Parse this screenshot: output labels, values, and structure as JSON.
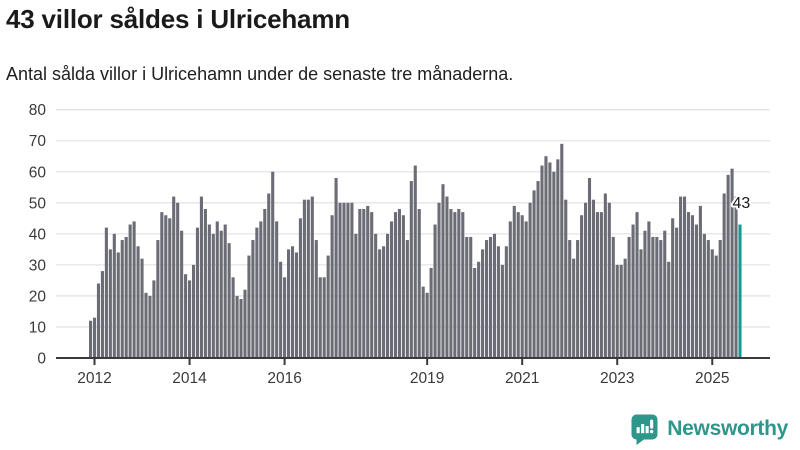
{
  "header": {
    "title": "43 villor såldes i Ulricehamn",
    "subtitle": "Antal sålda villor i Ulricehamn under de senaste tre månaderna."
  },
  "chart_data": {
    "type": "bar",
    "title": "43 villor såldes i Ulricehamn",
    "subtitle": "Antal sålda villor i Ulricehamn under de senaste tre månaderna.",
    "x_start": "2011-12",
    "x_end": "2025-08",
    "x_interval": "month",
    "values": [
      12,
      13,
      24,
      28,
      42,
      35,
      40,
      34,
      38,
      39,
      43,
      44,
      36,
      32,
      21,
      20,
      25,
      38,
      47,
      46,
      45,
      52,
      50,
      41,
      27,
      25,
      30,
      42,
      52,
      48,
      43,
      40,
      44,
      41,
      43,
      37,
      26,
      20,
      19,
      22,
      33,
      38,
      42,
      44,
      48,
      53,
      60,
      44,
      31,
      26,
      35,
      36,
      34,
      45,
      51,
      51,
      52,
      38,
      26,
      26,
      33,
      46,
      58,
      50,
      50,
      50,
      50,
      40,
      48,
      48,
      49,
      47,
      40,
      35,
      36,
      40,
      44,
      47,
      48,
      46,
      38,
      57,
      62,
      48,
      23,
      21,
      29,
      43,
      50,
      56,
      52,
      48,
      47,
      48,
      47,
      39,
      39,
      29,
      31,
      35,
      38,
      39,
      40,
      36,
      30,
      36,
      44,
      49,
      47,
      46,
      44,
      50,
      54,
      57,
      62,
      65,
      63,
      60,
      64,
      69,
      51,
      38,
      32,
      38,
      46,
      50,
      58,
      51,
      47,
      47,
      53,
      50,
      39,
      30,
      30,
      32,
      39,
      43,
      47,
      35,
      41,
      44,
      39,
      39,
      38,
      41,
      31,
      45,
      42,
      52,
      52,
      47,
      46,
      43,
      49,
      40,
      38,
      35,
      33,
      38,
      53,
      59,
      61,
      52,
      43
    ],
    "highlight_last_bar": true,
    "annotation": {
      "text": "43",
      "target": "last-bar"
    },
    "ylim": [
      0,
      80
    ],
    "yticks": [
      0,
      10,
      20,
      30,
      40,
      50,
      60,
      70,
      80
    ],
    "xticks": [
      {
        "label": "2012",
        "index": 1
      },
      {
        "label": "2014",
        "index": 25
      },
      {
        "label": "2016",
        "index": 49
      },
      {
        "label": "2019",
        "index": 85
      },
      {
        "label": "2021",
        "index": 109
      },
      {
        "label": "2023",
        "index": 133
      },
      {
        "label": "2025",
        "index": 157
      }
    ],
    "grid": "horizontal",
    "legend_position": "none",
    "colors": {
      "bar": "#6b6c75",
      "highlight": "#129a92",
      "grid": "#e4e4e7",
      "axis": "#3a3a3a",
      "tick_label": "#3a3a3a",
      "annotation": "#1a1a1a"
    }
  },
  "branding": {
    "name": "Newsworthy",
    "color": "#2f968c",
    "icon": "newsworthy-chart-bubble-icon"
  }
}
